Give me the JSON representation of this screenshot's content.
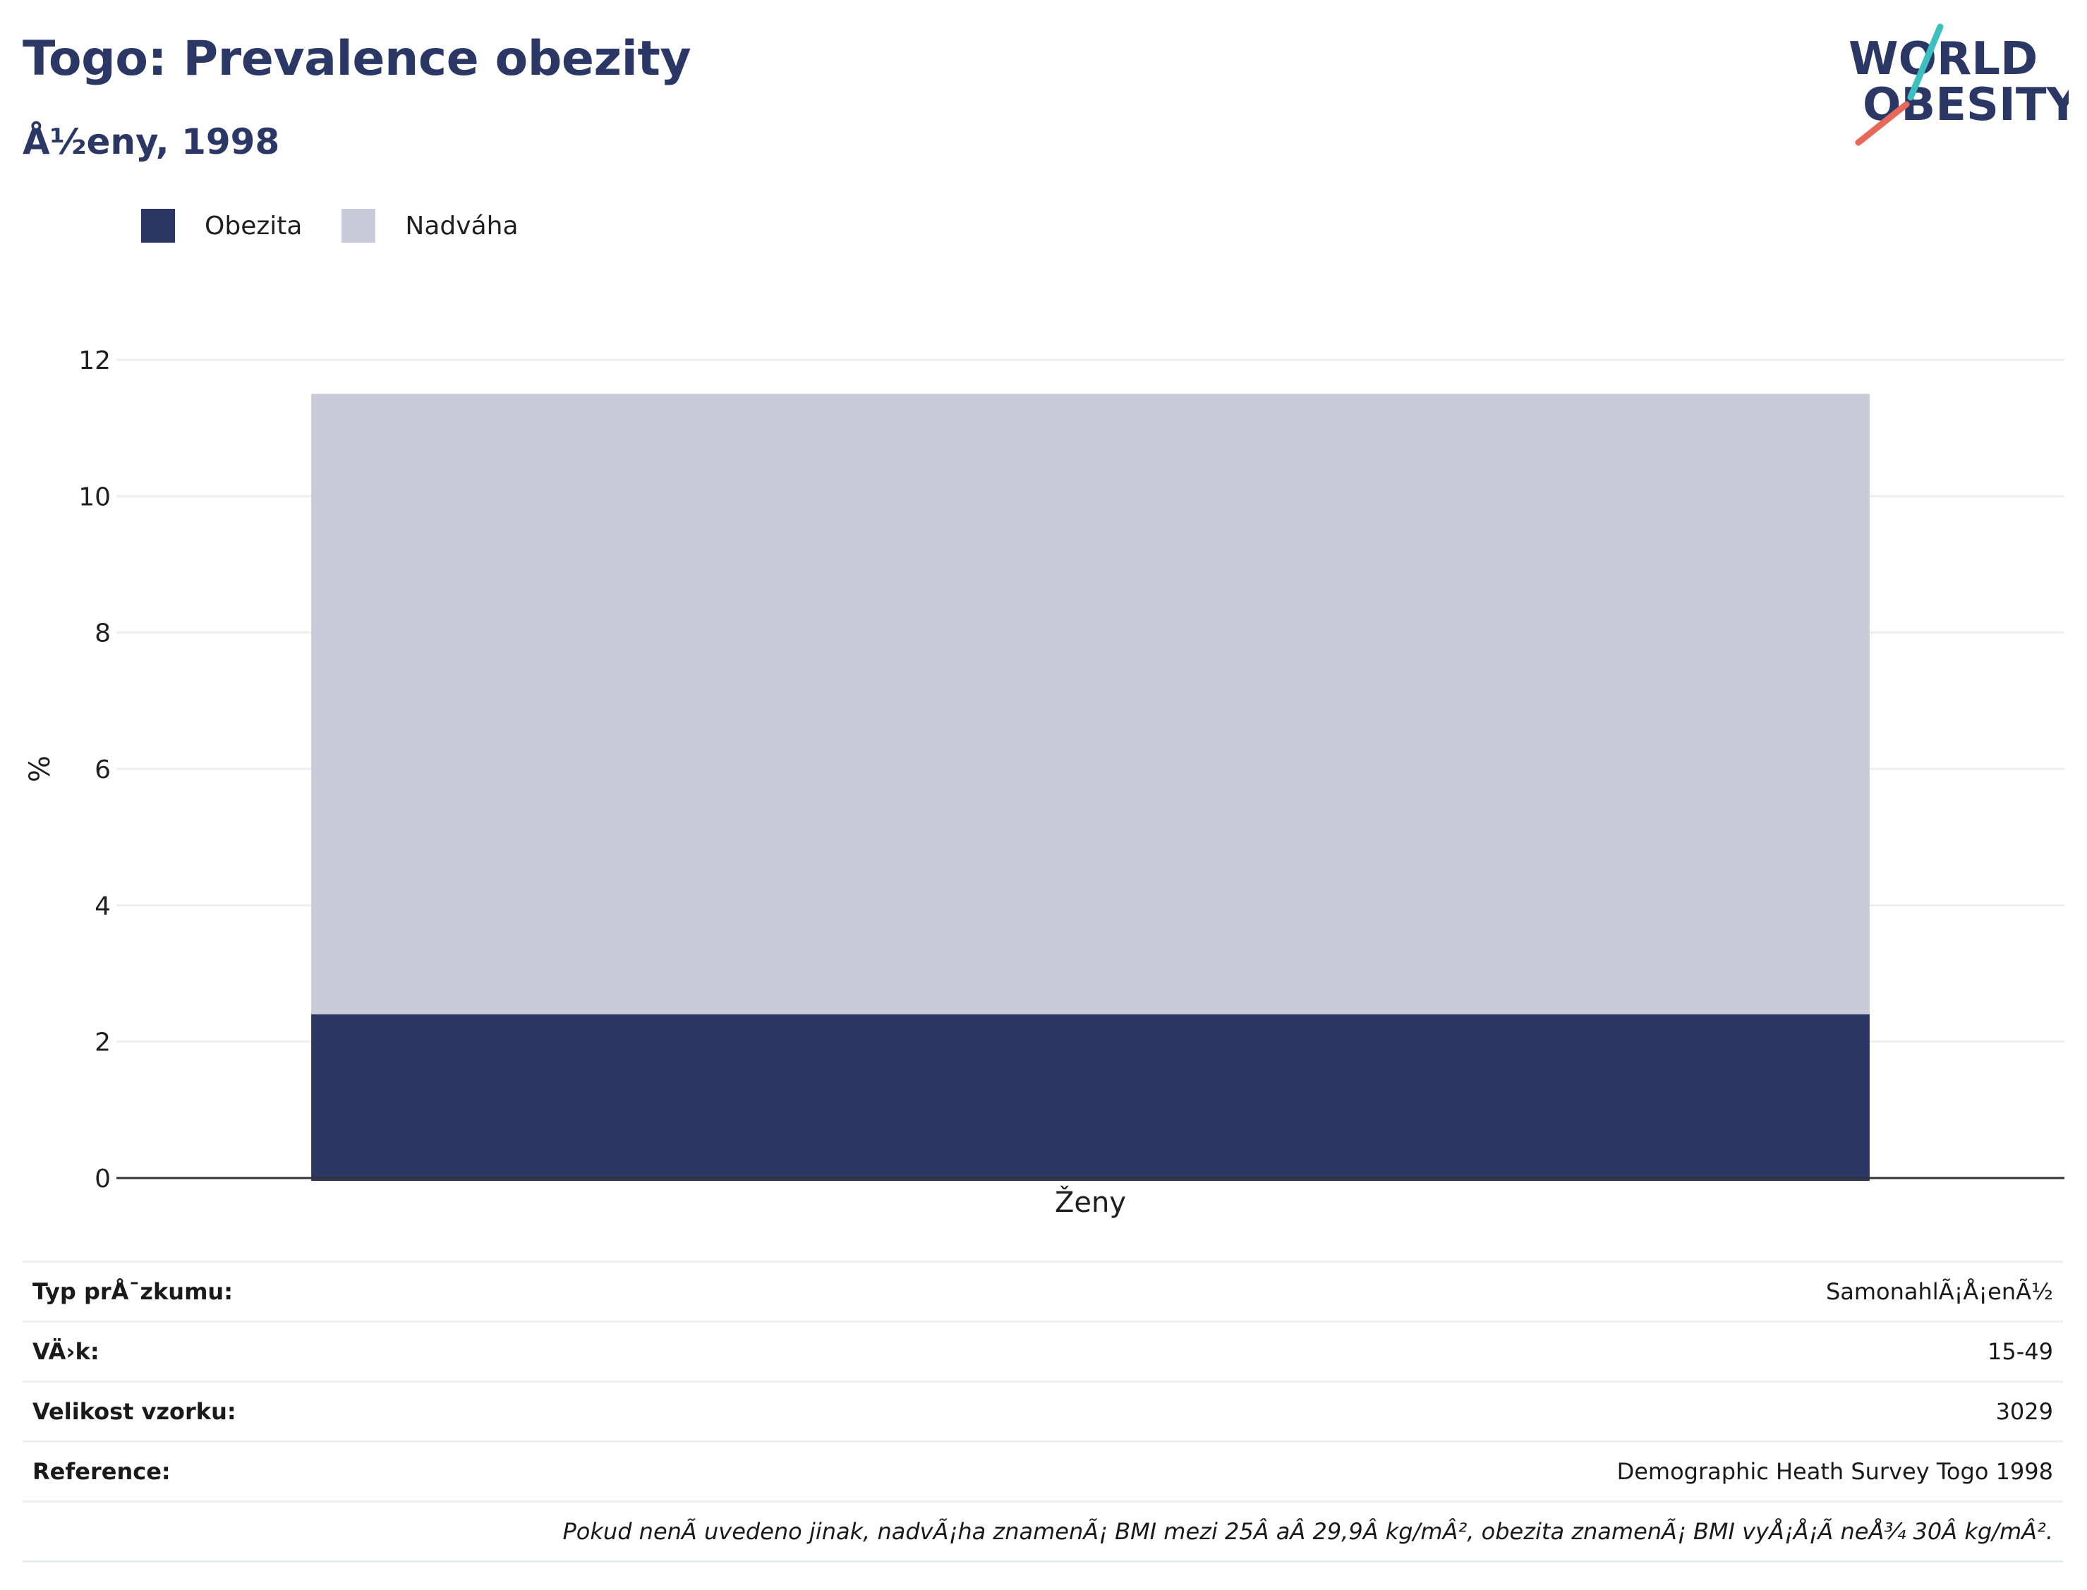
{
  "header": {
    "title": "Togo: Prevalence obezity",
    "subtitle": "Å½eny, 1998"
  },
  "logo": {
    "line1": "WORLD",
    "line2": "OBESITY",
    "text_color": "#2b3764",
    "slash_top_color": "#3bbfbf",
    "slash_bottom_color": "#e8685a"
  },
  "colors": {
    "obesity": "#2b3764",
    "overweight": "#c9ccd8",
    "grid": "#eeeeee",
    "axis": "#333333"
  },
  "chart_data": {
    "type": "bar",
    "stacked": true,
    "categories": [
      "Ženy"
    ],
    "series": [
      {
        "name": "Obezita",
        "values": [
          2.4
        ]
      },
      {
        "name": "Nadváha",
        "values": [
          9.1
        ]
      }
    ],
    "ylabel": "%",
    "ylim": [
      0,
      12
    ],
    "yticks": [
      0,
      2,
      4,
      6,
      8,
      10,
      12
    ],
    "grid": true,
    "legend_position": "top-left"
  },
  "info": {
    "rows": [
      {
        "label": "Typ prÅ¯zkumu:",
        "value": "SamonahlÃ¡Å¡enÃ½"
      },
      {
        "label": "VÄ›k:",
        "value": "15-49"
      },
      {
        "label": "Velikost vzorku:",
        "value": "3029"
      },
      {
        "label": "Reference:",
        "value": "Demographic Heath Survey Togo 1998"
      }
    ],
    "note": "Pokud nenÃ uvedeno jinak, nadvÃ¡ha znamenÃ¡ BMI mezi 25Â aÂ 29,9Â kg/mÂ², obezita znamenÃ¡ BMI vyÅ¡Å¡Ã neÅ¾ 30Â kg/mÂ²."
  }
}
